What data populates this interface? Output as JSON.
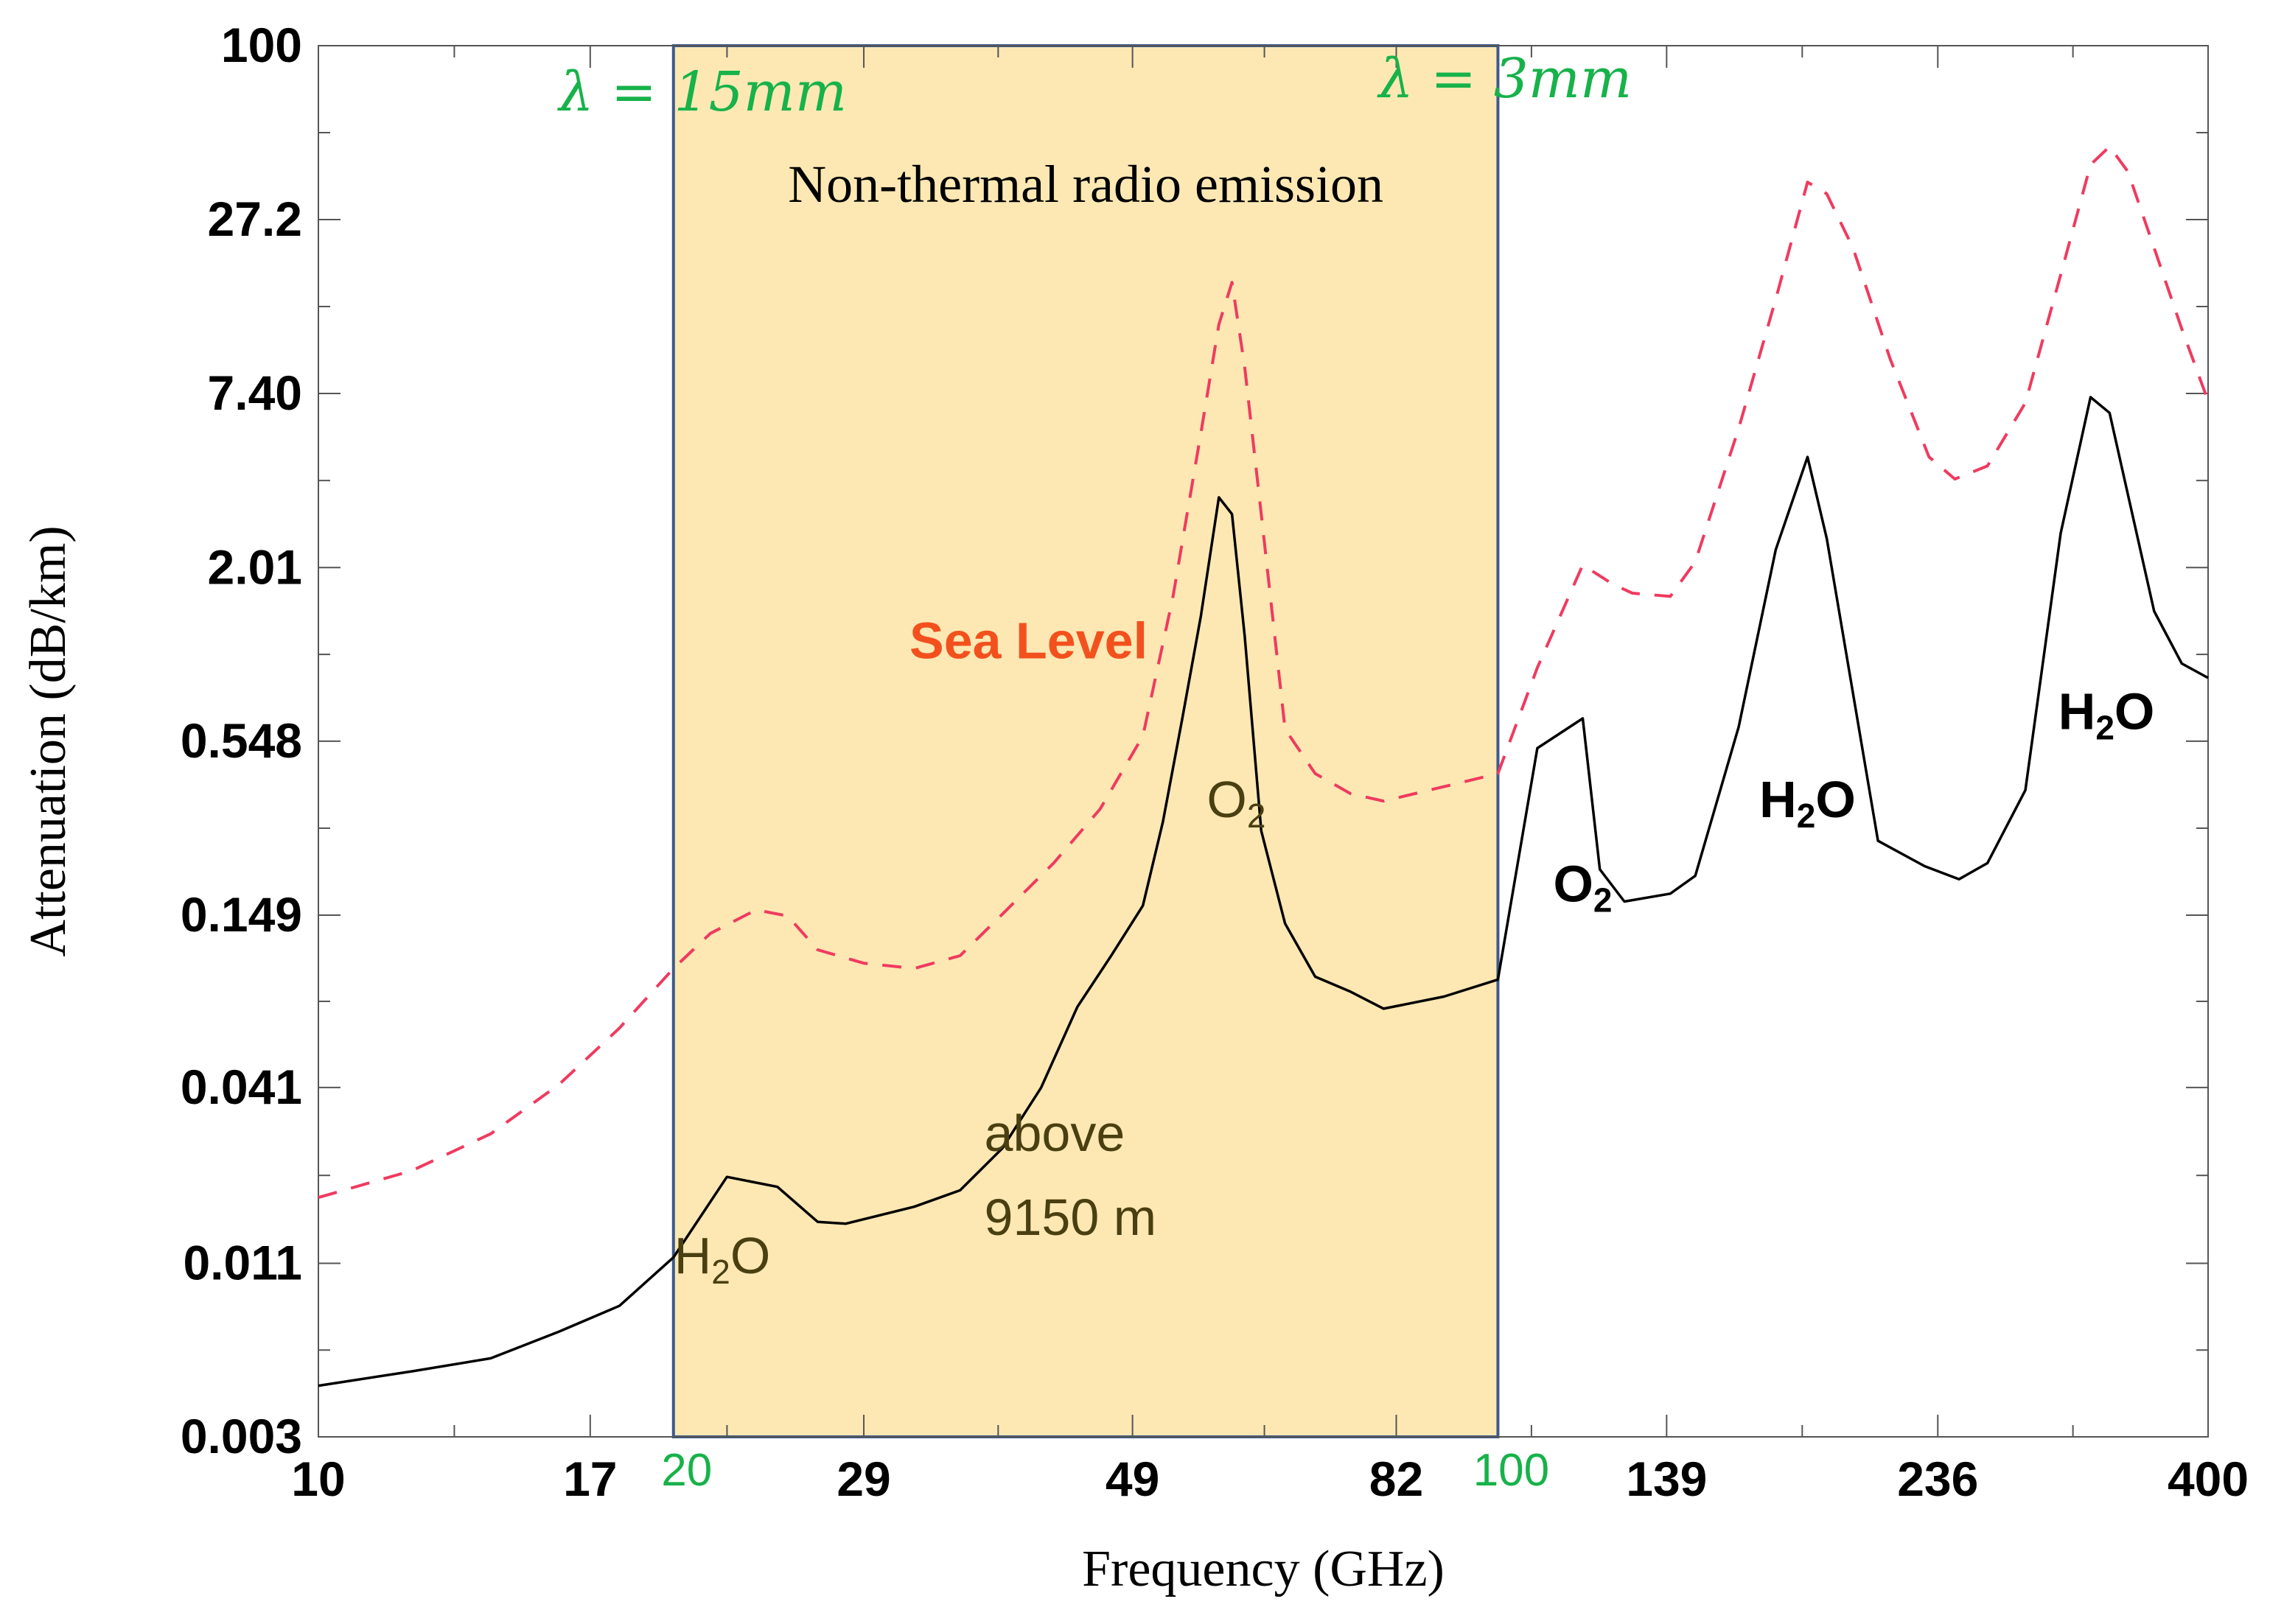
{
  "chart_data": {
    "type": "line",
    "title": "",
    "xlabel": "Frequency (GHz)",
    "ylabel": "Attenuation (dB/km)",
    "xscale": "log",
    "yscale": "log",
    "xlim": [
      10,
      400
    ],
    "ylim": [
      0.003,
      100
    ],
    "x_ticks": [
      {
        "value": 10,
        "label": "10"
      },
      {
        "value": 17,
        "label": "17"
      },
      {
        "value": 29,
        "label": "29"
      },
      {
        "value": 49,
        "label": "49"
      },
      {
        "value": 82,
        "label": "82"
      },
      {
        "value": 139,
        "label": "139"
      },
      {
        "value": 236,
        "label": "236"
      },
      {
        "value": 400,
        "label": "400"
      }
    ],
    "x_ticks_highlight": [
      {
        "value": 20,
        "label": "20"
      },
      {
        "value": 100,
        "label": "100"
      }
    ],
    "y_ticks": [
      {
        "value": 0.003,
        "label": "0.003"
      },
      {
        "value": 0.011,
        "label": "0.011"
      },
      {
        "value": 0.041,
        "label": "0.041"
      },
      {
        "value": 0.149,
        "label": "0.149"
      },
      {
        "value": 0.548,
        "label": "0.548"
      },
      {
        "value": 2.01,
        "label": "2.01"
      },
      {
        "value": 7.4,
        "label": "7.40"
      },
      {
        "value": 27.2,
        "label": "27.2"
      },
      {
        "value": 100,
        "label": "100"
      }
    ],
    "band": {
      "x_start": 20,
      "x_end": 100,
      "title": "Non-thermal radio emission",
      "left_label": "λ = 15mm",
      "right_label": "λ = 3mm",
      "fill": "#fde8b4",
      "border": "#3c5a8c"
    },
    "series": [
      {
        "name": "Sea Level",
        "color": "#f03a5f",
        "style": "dashed",
        "points": [
          [
            10,
            0.018
          ],
          [
            12,
            0.022
          ],
          [
            14,
            0.029
          ],
          [
            16,
            0.042
          ],
          [
            18,
            0.064
          ],
          [
            20,
            0.1
          ],
          [
            21.5,
            0.13
          ],
          [
            23.5,
            0.155
          ],
          [
            25,
            0.148
          ],
          [
            26.5,
            0.115
          ],
          [
            29,
            0.104
          ],
          [
            32,
            0.1
          ],
          [
            35,
            0.11
          ],
          [
            38,
            0.15
          ],
          [
            42,
            0.22
          ],
          [
            46,
            0.33
          ],
          [
            50,
            0.57
          ],
          [
            53,
            1.6
          ],
          [
            56,
            5.5
          ],
          [
            58,
            12.4
          ],
          [
            59.5,
            17
          ],
          [
            61,
            9.0
          ],
          [
            63,
            3.0
          ],
          [
            66,
            0.6
          ],
          [
            70,
            0.43
          ],
          [
            75,
            0.37
          ],
          [
            80,
            0.35
          ],
          [
            90,
            0.39
          ],
          [
            100,
            0.43
          ],
          [
            108,
            0.95
          ],
          [
            118,
            2.05
          ],
          [
            125,
            1.78
          ],
          [
            130,
            1.66
          ],
          [
            140,
            1.62
          ],
          [
            147,
            2.1
          ],
          [
            160,
            5.7
          ],
          [
            172,
            15
          ],
          [
            183,
            36
          ],
          [
            190,
            33
          ],
          [
            200,
            22
          ],
          [
            215,
            9.6
          ],
          [
            232,
            4.6
          ],
          [
            244,
            3.9
          ],
          [
            260,
            4.3
          ],
          [
            280,
            6.9
          ],
          [
            300,
            18
          ],
          [
            318,
            41
          ],
          [
            330,
            47
          ],
          [
            342,
            39
          ],
          [
            360,
            22
          ],
          [
            380,
            12
          ],
          [
            400,
            7.0
          ]
        ]
      },
      {
        "name": "above 9150 m",
        "color": "#000000",
        "style": "solid",
        "points": [
          [
            10,
            0.0044
          ],
          [
            12,
            0.0049
          ],
          [
            14,
            0.0054
          ],
          [
            16,
            0.0066
          ],
          [
            18,
            0.008
          ],
          [
            20,
            0.0115
          ],
          [
            22.2,
            0.021
          ],
          [
            24.5,
            0.0195
          ],
          [
            26.5,
            0.015
          ],
          [
            28,
            0.0148
          ],
          [
            32,
            0.0168
          ],
          [
            35,
            0.019
          ],
          [
            38,
            0.026
          ],
          [
            41,
            0.041
          ],
          [
            44,
            0.075
          ],
          [
            47,
            0.11
          ],
          [
            50,
            0.16
          ],
          [
            52,
            0.3
          ],
          [
            54,
            0.65
          ],
          [
            56,
            1.4
          ],
          [
            58,
            3.4
          ],
          [
            59.5,
            3.0
          ],
          [
            61,
            1.2
          ],
          [
            63,
            0.28
          ],
          [
            66,
            0.14
          ],
          [
            70,
            0.094
          ],
          [
            75,
            0.084
          ],
          [
            80,
            0.074
          ],
          [
            90,
            0.081
          ],
          [
            100,
            0.092
          ],
          [
            108,
            0.52
          ],
          [
            118,
            0.65
          ],
          [
            122,
            0.21
          ],
          [
            128,
            0.165
          ],
          [
            140,
            0.175
          ],
          [
            147,
            0.2
          ],
          [
            160,
            0.61
          ],
          [
            172,
            2.3
          ],
          [
            183,
            4.6
          ],
          [
            190,
            2.5
          ],
          [
            210,
            0.26
          ],
          [
            230,
            0.215
          ],
          [
            246,
            0.195
          ],
          [
            260,
            0.22
          ],
          [
            280,
            0.38
          ],
          [
            300,
            2.6
          ],
          [
            318,
            7.2
          ],
          [
            330,
            6.4
          ],
          [
            360,
            1.45
          ],
          [
            380,
            0.98
          ],
          [
            400,
            0.88
          ]
        ]
      }
    ],
    "annotations": [
      {
        "id": "h2o-22",
        "parts": [
          "H",
          "2",
          "O"
        ],
        "x": 22,
        "y": 0.0102,
        "tone": "olive",
        "bold": false
      },
      {
        "id": "o2-60",
        "parts": [
          "O",
          "2"
        ],
        "x": 60,
        "y": 0.31,
        "tone": "olive",
        "bold": false
      },
      {
        "id": "o2-118",
        "parts": [
          "O",
          "2"
        ],
        "x": 118,
        "y": 0.165,
        "tone": "black",
        "bold": true
      },
      {
        "id": "h2o-183",
        "parts": [
          "H",
          "2",
          "O"
        ],
        "x": 183,
        "y": 0.31,
        "tone": "black",
        "bold": true
      },
      {
        "id": "h2o-325",
        "parts": [
          "H",
          "2",
          "O"
        ],
        "x": 328,
        "y": 0.6,
        "tone": "black",
        "bold": true
      }
    ],
    "series_labels": {
      "sea_level": {
        "text": "Sea Level",
        "x": 40,
        "y": 1.02
      },
      "above_line1": {
        "text": "above",
        "x": 40,
        "y": 0.0255
      },
      "above_line2": {
        "text": "9150 m",
        "x": 40,
        "y": 0.0136
      }
    }
  },
  "colors": {
    "band_fill": "#fde8b4",
    "band_border": "#3c5a8c",
    "green": "#17b24a",
    "sea_level_line": "#f03a5f",
    "sea_level_label": "#f2511e",
    "high_altitude_line": "#000000",
    "olive_text": "#4a3f10"
  }
}
